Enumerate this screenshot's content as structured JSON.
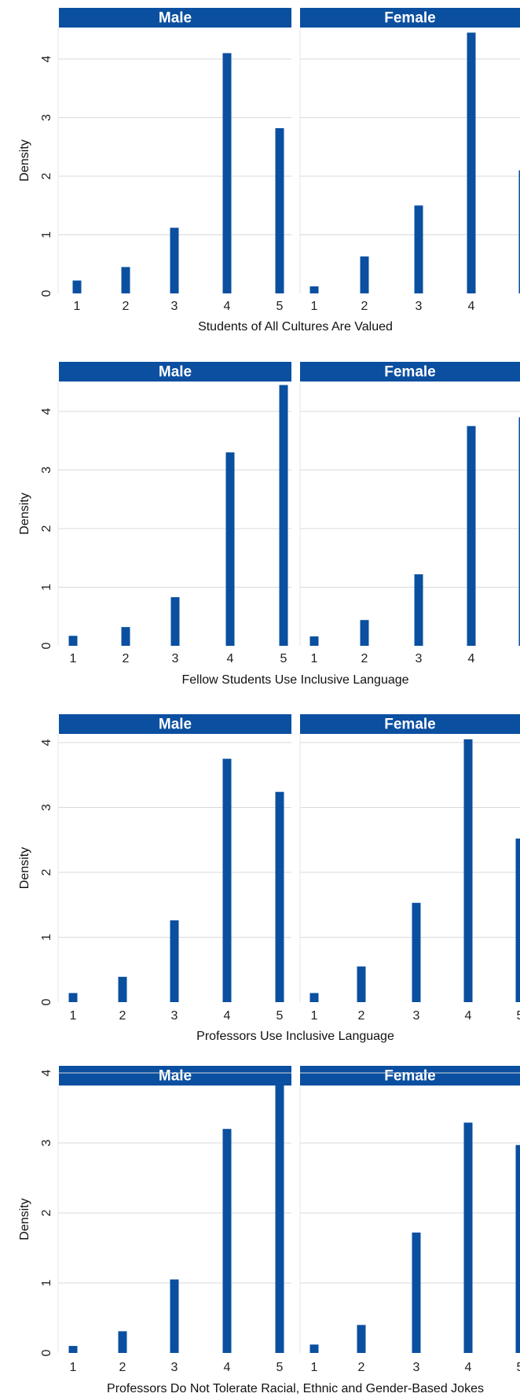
{
  "figure": {
    "bar_color": "#0a4fa0",
    "strip_color": "#0a4fa0",
    "grid_color": "#d9d9d9",
    "y_axis_label": "Density"
  },
  "chart_data": [
    {
      "type": "bar",
      "xlabel": "Students of All Cultures Are Valued",
      "ylabel": "Density",
      "ylim": [
        0,
        4.45
      ],
      "yticks": [
        0,
        1,
        2,
        3,
        4
      ],
      "categories": [
        "1",
        "2",
        "3",
        "4",
        "5"
      ],
      "series": [
        {
          "name": "Male",
          "values": [
            0.22,
            0.45,
            1.12,
            4.1,
            2.82
          ]
        },
        {
          "name": "Female",
          "values": [
            0.12,
            0.63,
            1.5,
            4.45,
            2.1
          ]
        }
      ]
    },
    {
      "type": "bar",
      "xlabel": "Fellow Students Use Inclusive Language",
      "ylabel": "Density",
      "ylim": [
        0,
        4.45
      ],
      "yticks": [
        0,
        1,
        2,
        3,
        4
      ],
      "categories": [
        "1",
        "2",
        "3",
        "4",
        "5"
      ],
      "series": [
        {
          "name": "Male",
          "values": [
            0.17,
            0.32,
            0.83,
            3.3,
            4.45
          ]
        },
        {
          "name": "Female",
          "values": [
            0.16,
            0.44,
            1.22,
            3.75,
            3.9
          ]
        }
      ]
    },
    {
      "type": "bar",
      "xlabel": "Professors Use Inclusive Language",
      "ylabel": "Density",
      "ylim": [
        0,
        4.05
      ],
      "yticks": [
        0,
        1,
        2,
        3,
        4
      ],
      "categories": [
        "1",
        "2",
        "3",
        "4",
        "5"
      ],
      "series": [
        {
          "name": "Male",
          "values": [
            0.14,
            0.39,
            1.26,
            3.75,
            3.24
          ]
        },
        {
          "name": "Female",
          "values": [
            0.14,
            0.55,
            1.53,
            4.05,
            2.52
          ]
        }
      ]
    },
    {
      "type": "bar",
      "xlabel": "Professors Do Not Tolerate Racial, Ethnic and Gender-Based Jokes",
      "ylabel": "Density",
      "ylim": [
        0,
        4.05
      ],
      "yticks": [
        0,
        1,
        2,
        3,
        4
      ],
      "categories": [
        "1",
        "2",
        "3",
        "4",
        "5"
      ],
      "series": [
        {
          "name": "Male",
          "values": [
            0.1,
            0.31,
            1.05,
            3.2,
            3.83
          ]
        },
        {
          "name": "Female",
          "values": [
            0.12,
            0.4,
            1.72,
            3.29,
            2.97
          ]
        }
      ]
    }
  ]
}
